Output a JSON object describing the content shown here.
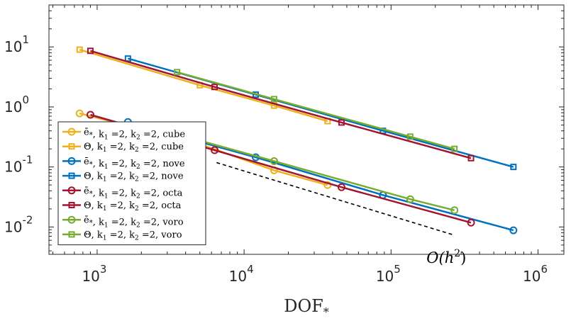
{
  "chart_data": {
    "type": "line",
    "xscale": "log",
    "yscale": "log",
    "xlim": [
      470,
      1500000
    ],
    "ylim": [
      0.0035,
      50
    ],
    "xlabel": "DOF",
    "xlabel_sub": "*",
    "ylabel": "",
    "grid": false,
    "legend_position": "bottom-left",
    "x_ticks": [
      {
        "value": 1000,
        "base": "10",
        "exp": "3"
      },
      {
        "value": 10000,
        "base": "10",
        "exp": "4"
      },
      {
        "value": 100000,
        "base": "10",
        "exp": "5"
      },
      {
        "value": 1000000,
        "base": "10",
        "exp": "6"
      }
    ],
    "y_ticks": [
      {
        "value": 0.01,
        "base": "10",
        "exp": "-2"
      },
      {
        "value": 0.1,
        "base": "10",
        "exp": "-1"
      },
      {
        "value": 1,
        "base": "10",
        "exp": "0"
      },
      {
        "value": 10,
        "base": "10",
        "exp": "1"
      }
    ],
    "series": [
      {
        "name": "ē*, k1 =2, k2 =2, cube",
        "legend": {
          "sym": "ē",
          "rest": ", k",
          "s1": "1",
          "mid": " =2, k",
          "s2": "2",
          "end": " =2, cube"
        },
        "color": "#EDB120",
        "marker": "circle",
        "x": [
          760,
          5000,
          16000,
          37000
        ],
        "y": [
          0.78,
          0.24,
          0.088,
          0.05
        ]
      },
      {
        "name": "Θ, k1 =2, k2 =2, cube",
        "legend": {
          "sym": "Θ",
          "rest": ", k",
          "s1": "1",
          "mid": " =2, k",
          "s2": "2",
          "end": " =2, cube"
        },
        "color": "#EDB120",
        "marker": "square",
        "x": [
          760,
          5000,
          16000,
          37000
        ],
        "y": [
          9.0,
          2.3,
          1.05,
          0.58
        ]
      },
      {
        "name": "ē*, k1 =2, k2 =2, nove",
        "legend": {
          "sym": "ē",
          "rest": ", k",
          "s1": "1",
          "mid": " =2, k",
          "s2": "2",
          "end": " =2, nove"
        },
        "color": "#0072BD",
        "marker": "circle",
        "x": [
          1620,
          12000,
          88000,
          680000
        ],
        "y": [
          0.56,
          0.145,
          0.034,
          0.0088
        ]
      },
      {
        "name": "Θ, k1 =2, k2 =2, nove",
        "legend": {
          "sym": "Θ",
          "rest": ", k",
          "s1": "1",
          "mid": " =2, k",
          "s2": "2",
          "end": " =2, nove"
        },
        "color": "#0072BD",
        "marker": "square",
        "x": [
          1620,
          12000,
          88000,
          680000
        ],
        "y": [
          6.4,
          1.6,
          0.4,
          0.1
        ]
      },
      {
        "name": "ē*, k1 =2, k2 =2, octa",
        "legend": {
          "sym": "ē",
          "rest": ", k",
          "s1": "1",
          "mid": " =2, k",
          "s2": "2",
          "end": " =2, octa"
        },
        "color": "#A2142F",
        "marker": "circle",
        "x": [
          900,
          6300,
          46000,
          350000
        ],
        "y": [
          0.74,
          0.19,
          0.046,
          0.0118
        ]
      },
      {
        "name": "Θ, k1 =2, k2 =2, octa",
        "legend": {
          "sym": "Θ",
          "rest": ", k",
          "s1": "1",
          "mid": " =2, k",
          "s2": "2",
          "end": " =2, octa"
        },
        "color": "#A2142F",
        "marker": "square",
        "x": [
          900,
          6300,
          46000,
          350000
        ],
        "y": [
          8.6,
          2.15,
          0.55,
          0.14
        ]
      },
      {
        "name": "ē*, k1 =2, k2 =2, voro",
        "legend": {
          "sym": "ē",
          "rest": ", k",
          "s1": "1",
          "mid": " =2, k",
          "s2": "2",
          "end": " =2, voro"
        },
        "color": "#77AC30",
        "marker": "circle",
        "x": [
          3500,
          16000,
          135000,
          270000
        ],
        "y": [
          0.35,
          0.125,
          0.029,
          0.019
        ]
      },
      {
        "name": "Θ, k1 =2, k2 =2, voro",
        "legend": {
          "sym": "Θ",
          "rest": ", k",
          "s1": "1",
          "mid": " =2, k",
          "s2": "2",
          "end": " =2, voro"
        },
        "color": "#77AC30",
        "marker": "square",
        "x": [
          3500,
          16000,
          135000,
          270000
        ],
        "y": [
          3.8,
          1.35,
          0.32,
          0.2
        ]
      }
    ],
    "reference_line": {
      "label_pre": "O(h",
      "label_exp": "2",
      "label_post": ")",
      "x": [
        6500,
        260000
      ],
      "y": [
        0.118,
        0.0075
      ]
    }
  }
}
